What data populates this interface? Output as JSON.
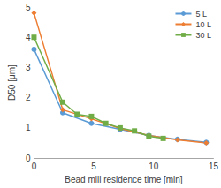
{
  "chart_data": {
    "type": "line",
    "x_label": "Bead mill residence time [min]",
    "y_label": "D50 [μm]",
    "series": [
      {
        "name": "5 L",
        "color": "#5b9bd5",
        "marker": "circle",
        "x": [
          0,
          2.4,
          4.8,
          7.2,
          9.6,
          12,
          14.4
        ],
        "values": [
          3.6,
          1.5,
          1.15,
          0.95,
          0.75,
          0.62,
          0.52
        ]
      },
      {
        "name": "10 L",
        "color": "#ed7d31",
        "marker": "diamond",
        "x": [
          0,
          2.4,
          4.8,
          7.2,
          9.6,
          12,
          14.4
        ],
        "values": [
          4.8,
          1.6,
          1.3,
          0.98,
          0.75,
          0.6,
          0.5
        ]
      },
      {
        "name": "30 L",
        "color": "#70ad47",
        "marker": "square",
        "x": [
          0,
          2.4,
          3.6,
          4.8,
          6,
          7.2,
          8.4,
          9.6,
          10.8
        ],
        "values": [
          4.0,
          1.85,
          1.45,
          1.38,
          1.15,
          1.0,
          0.9,
          0.72,
          0.65
        ]
      }
    ],
    "xlim": [
      0,
      15
    ],
    "xticks": [
      0,
      5,
      10,
      15
    ],
    "ylim": [
      0,
      5
    ],
    "yticks": [
      0,
      1,
      2,
      3,
      4,
      5
    ],
    "grid": false,
    "legend": "top-right"
  }
}
